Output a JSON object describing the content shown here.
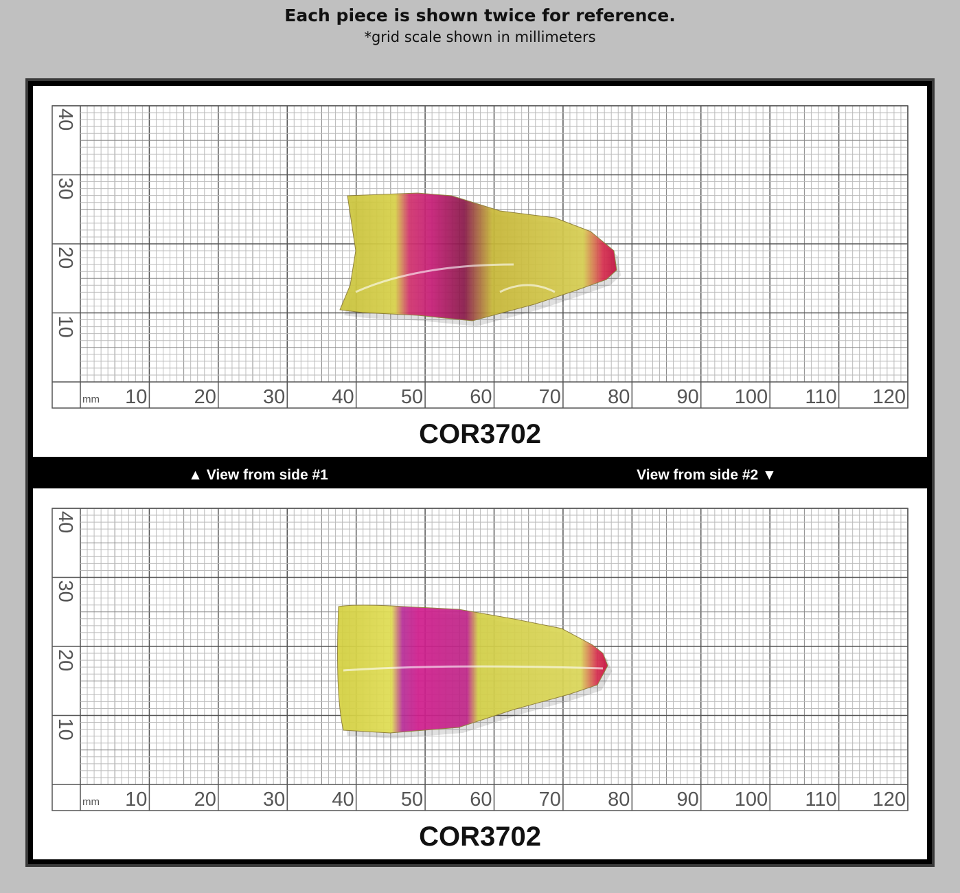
{
  "header": {
    "title": "Each piece is shown twice for reference.",
    "subtitle": "*grid scale shown in millimeters"
  },
  "panels": [
    {
      "label": "COR3702",
      "scale": {
        "unit": "mm",
        "x_labels": [
          10,
          20,
          30,
          40,
          50,
          60,
          70,
          80,
          90,
          100,
          110,
          120
        ],
        "y_labels": [
          10,
          20,
          30,
          40
        ]
      }
    },
    {
      "label": "COR3702",
      "scale": {
        "unit": "mm",
        "x_labels": [
          10,
          20,
          30,
          40,
          50,
          60,
          70,
          80,
          90,
          100,
          110,
          120
        ],
        "y_labels": [
          10,
          20,
          30,
          40
        ]
      }
    }
  ],
  "captions": {
    "side1": "▲ View from side #1",
    "side2": "View from side #2 ▼"
  }
}
